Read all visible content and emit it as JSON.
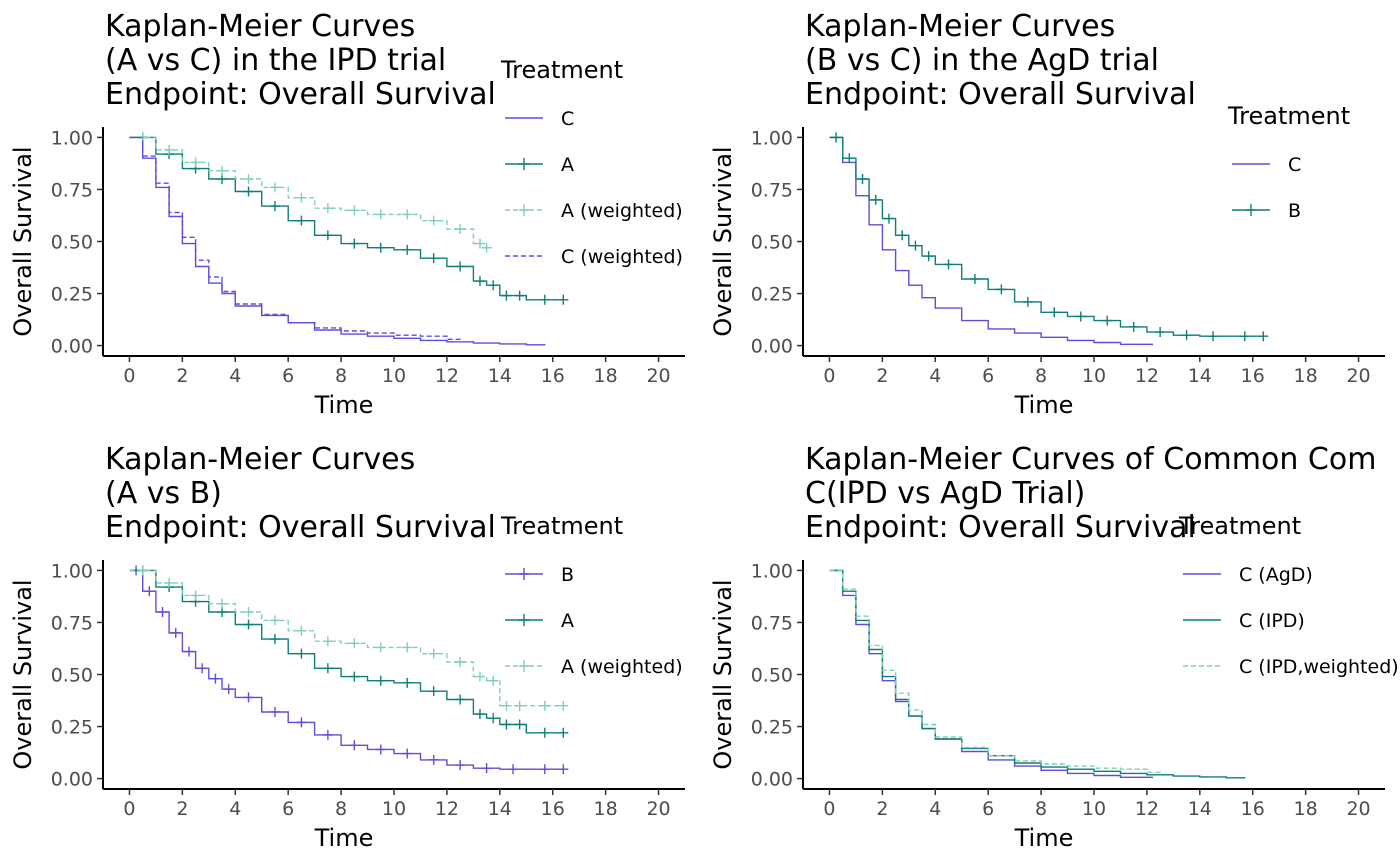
{
  "colors": {
    "purple": "#5a4fdd",
    "teal": "#0e7f78",
    "mint": "#7fd0b5",
    "axis": "#000000",
    "tick_text": "#4d4d4d"
  },
  "chart_data": [
    {
      "type": "line",
      "title_lines": [
        "Kaplan-Meier Curves",
        "(A vs C) in the IPD trial",
        "Endpoint: Overall Survival"
      ],
      "xlabel": "Time",
      "ylabel": "Overall Survival",
      "xlim": [
        -1,
        21
      ],
      "ylim": [
        -0.05,
        1.05
      ],
      "x_ticks": [
        "0",
        "2",
        "4",
        "6",
        "8",
        "10",
        "12",
        "14",
        "16",
        "18",
        "20"
      ],
      "y_ticks": [
        "0.00",
        "0.25",
        "0.50",
        "0.75",
        "1.00"
      ],
      "legend_title": "Treatment",
      "legend_position": "right",
      "series": [
        {
          "name": "C",
          "color": "purple",
          "dashed": false,
          "censor_marks": false,
          "x": [
            0,
            0.5,
            1,
            1.5,
            2,
            2.5,
            3,
            3.5,
            4,
            5,
            6,
            7,
            8,
            9,
            10,
            11,
            12,
            13,
            14,
            15,
            15.7
          ],
          "y": [
            1.0,
            0.9,
            0.76,
            0.62,
            0.49,
            0.38,
            0.3,
            0.25,
            0.19,
            0.145,
            0.11,
            0.075,
            0.055,
            0.045,
            0.035,
            0.025,
            0.018,
            0.012,
            0.008,
            0.004,
            0.002
          ]
        },
        {
          "name": "A",
          "color": "teal",
          "dashed": false,
          "censor_marks": true,
          "x": [
            0,
            1,
            2,
            3,
            4,
            5,
            6,
            7,
            8,
            9,
            10,
            11,
            12,
            13,
            13.5,
            14,
            14.5,
            15,
            16.4
          ],
          "y": [
            1.0,
            0.92,
            0.85,
            0.8,
            0.74,
            0.67,
            0.6,
            0.53,
            0.49,
            0.47,
            0.46,
            0.42,
            0.38,
            0.31,
            0.29,
            0.24,
            0.24,
            0.22,
            0.22
          ]
        },
        {
          "name": "A (weighted)",
          "color": "mint",
          "dashed": true,
          "censor_marks": true,
          "x": [
            0,
            1,
            2,
            3,
            4,
            5,
            6,
            7,
            8,
            9,
            10,
            11,
            12,
            13,
            13.5
          ],
          "y": [
            1.0,
            0.94,
            0.88,
            0.84,
            0.8,
            0.76,
            0.71,
            0.66,
            0.65,
            0.63,
            0.63,
            0.6,
            0.56,
            0.49,
            0.47
          ]
        },
        {
          "name": "C (weighted)",
          "color": "purple",
          "dashed": true,
          "censor_marks": false,
          "x": [
            0,
            0.5,
            1,
            1.5,
            2,
            2.5,
            3,
            3.5,
            4,
            5,
            6,
            7,
            8,
            9,
            10,
            11,
            12,
            12.5
          ],
          "y": [
            1.0,
            0.91,
            0.78,
            0.64,
            0.52,
            0.41,
            0.33,
            0.26,
            0.2,
            0.15,
            0.11,
            0.085,
            0.07,
            0.06,
            0.05,
            0.045,
            0.03,
            0.02
          ]
        }
      ]
    },
    {
      "type": "line",
      "title_lines": [
        "Kaplan-Meier Curves",
        "(B vs C) in the AgD trial",
        "Endpoint: Overall Survival"
      ],
      "xlabel": "Time",
      "ylabel": "Overall Survival",
      "xlim": [
        -1,
        21
      ],
      "ylim": [
        -0.05,
        1.05
      ],
      "x_ticks": [
        "0",
        "2",
        "4",
        "6",
        "8",
        "10",
        "12",
        "14",
        "16",
        "18",
        "20"
      ],
      "y_ticks": [
        "0.00",
        "0.25",
        "0.50",
        "0.75",
        "1.00"
      ],
      "legend_title": "Treatment",
      "legend_position": "right",
      "series": [
        {
          "name": "C",
          "color": "purple",
          "dashed": false,
          "censor_marks": false,
          "x": [
            0,
            0.5,
            1,
            1.5,
            2,
            2.5,
            3,
            3.5,
            4,
            5,
            6,
            7,
            8,
            9,
            10,
            11,
            12.2
          ],
          "y": [
            1.0,
            0.88,
            0.72,
            0.58,
            0.46,
            0.36,
            0.29,
            0.23,
            0.18,
            0.12,
            0.08,
            0.06,
            0.04,
            0.025,
            0.015,
            0.006,
            0.002
          ]
        },
        {
          "name": "B",
          "color": "teal",
          "dashed": false,
          "censor_marks": true,
          "x": [
            0,
            0.5,
            1,
            1.5,
            2,
            2.5,
            3,
            3.5,
            4,
            5,
            6,
            7,
            8,
            9,
            10,
            11,
            12,
            13,
            14,
            15,
            16.4
          ],
          "y": [
            1.0,
            0.9,
            0.8,
            0.7,
            0.61,
            0.53,
            0.48,
            0.43,
            0.39,
            0.32,
            0.27,
            0.21,
            0.16,
            0.14,
            0.12,
            0.09,
            0.065,
            0.05,
            0.045,
            0.045,
            0.045
          ]
        }
      ]
    },
    {
      "type": "line",
      "title_lines": [
        "Kaplan-Meier Curves",
        "(A vs B)",
        "Endpoint: Overall Survival"
      ],
      "xlabel": "Time",
      "ylabel": "Overall Survival",
      "xlim": [
        -1,
        21
      ],
      "ylim": [
        -0.05,
        1.05
      ],
      "x_ticks": [
        "0",
        "2",
        "4",
        "6",
        "8",
        "10",
        "12",
        "14",
        "16",
        "18",
        "20"
      ],
      "y_ticks": [
        "0.00",
        "0.25",
        "0.50",
        "0.75",
        "1.00"
      ],
      "legend_title": "Treatment",
      "legend_position": "right",
      "series": [
        {
          "name": "B",
          "color": "purple",
          "dashed": false,
          "censor_marks": true,
          "x": [
            0,
            0.5,
            1,
            1.5,
            2,
            2.5,
            3,
            3.5,
            4,
            5,
            6,
            7,
            8,
            9,
            10,
            11,
            12,
            13,
            14,
            15,
            16.4
          ],
          "y": [
            1.0,
            0.9,
            0.8,
            0.7,
            0.61,
            0.53,
            0.48,
            0.43,
            0.39,
            0.32,
            0.27,
            0.21,
            0.16,
            0.14,
            0.12,
            0.09,
            0.065,
            0.05,
            0.045,
            0.045,
            0.045
          ]
        },
        {
          "name": "A",
          "color": "teal",
          "dashed": false,
          "censor_marks": true,
          "x": [
            0,
            1,
            2,
            3,
            4,
            5,
            6,
            7,
            8,
            9,
            10,
            11,
            12,
            13,
            13.5,
            14,
            14.5,
            15,
            16.4
          ],
          "y": [
            1.0,
            0.92,
            0.85,
            0.8,
            0.74,
            0.67,
            0.6,
            0.53,
            0.49,
            0.47,
            0.46,
            0.42,
            0.38,
            0.31,
            0.29,
            0.26,
            0.26,
            0.22,
            0.22
          ]
        },
        {
          "name": "A (weighted)",
          "color": "mint",
          "dashed": true,
          "censor_marks": true,
          "x": [
            0,
            1,
            2,
            3,
            4,
            5,
            6,
            7,
            8,
            9,
            10,
            11,
            12,
            13,
            13.5,
            14,
            14.5,
            15,
            16.4
          ],
          "y": [
            1.0,
            0.94,
            0.88,
            0.84,
            0.8,
            0.76,
            0.71,
            0.66,
            0.65,
            0.63,
            0.63,
            0.6,
            0.56,
            0.49,
            0.47,
            0.35,
            0.35,
            0.35,
            0.35
          ]
        }
      ]
    },
    {
      "type": "line",
      "title_lines": [
        "Kaplan-Meier Curves of Common Com",
        "C(IPD vs AgD Trial)",
        "Endpoint: Overall Survival"
      ],
      "xlabel": "Time",
      "ylabel": "Overall Survival",
      "xlim": [
        -1,
        21
      ],
      "ylim": [
        -0.05,
        1.05
      ],
      "x_ticks": [
        "0",
        "2",
        "4",
        "6",
        "8",
        "10",
        "12",
        "14",
        "16",
        "18",
        "20"
      ],
      "y_ticks": [
        "0.00",
        "0.25",
        "0.50",
        "0.75",
        "1.00"
      ],
      "legend_title": "Treatment",
      "legend_position": "right",
      "series": [
        {
          "name": "C (AgD)",
          "color": "purple",
          "dashed": false,
          "censor_marks": false,
          "x": [
            0,
            0.5,
            1,
            1.5,
            2,
            2.5,
            3,
            3.5,
            4,
            5,
            6,
            7,
            8,
            9,
            10,
            11,
            12.2
          ],
          "y": [
            1.0,
            0.88,
            0.74,
            0.6,
            0.47,
            0.37,
            0.3,
            0.24,
            0.19,
            0.13,
            0.09,
            0.06,
            0.04,
            0.025,
            0.015,
            0.006,
            0.002
          ]
        },
        {
          "name": "C (IPD)",
          "color": "teal",
          "dashed": false,
          "censor_marks": false,
          "x": [
            0,
            0.5,
            1,
            1.5,
            2,
            2.5,
            3,
            3.5,
            4,
            5,
            6,
            7,
            8,
            9,
            10,
            11,
            12,
            13,
            14,
            15,
            15.7
          ],
          "y": [
            1.0,
            0.9,
            0.76,
            0.62,
            0.49,
            0.38,
            0.3,
            0.24,
            0.19,
            0.145,
            0.11,
            0.075,
            0.055,
            0.045,
            0.035,
            0.025,
            0.018,
            0.012,
            0.008,
            0.004,
            0.002
          ]
        },
        {
          "name": "C (IPD,weighted)",
          "color": "mint",
          "dashed": true,
          "censor_marks": false,
          "x": [
            0,
            0.5,
            1,
            1.5,
            2,
            2.5,
            3,
            3.5,
            4,
            5,
            6,
            7,
            8,
            9,
            10,
            11,
            12,
            12.5
          ],
          "y": [
            1.0,
            0.91,
            0.78,
            0.64,
            0.52,
            0.41,
            0.33,
            0.26,
            0.2,
            0.15,
            0.11,
            0.085,
            0.07,
            0.06,
            0.05,
            0.045,
            0.03,
            0.02
          ]
        }
      ]
    }
  ]
}
